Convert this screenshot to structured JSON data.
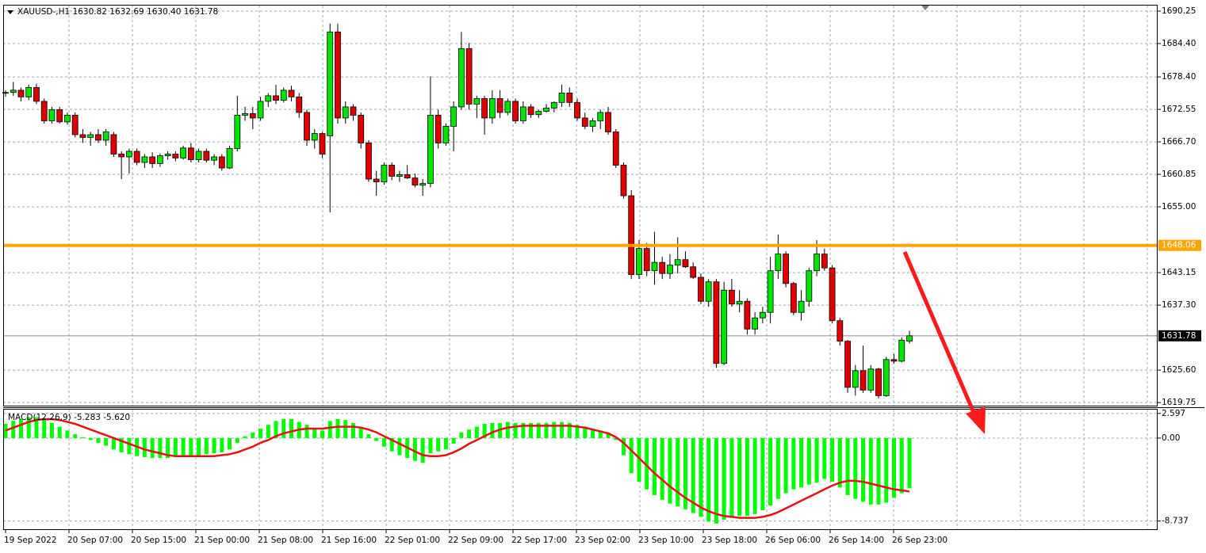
{
  "chart_data": [
    {
      "type": "candlestick",
      "title": "XAUUSD-,H1 1630.82 1632.69 1630.40 1631.78",
      "bull_color": "#00e600",
      "bear_color": "#e00000",
      "ylim": [
        1619.2,
        1691.25
      ],
      "yticks": [
        1690.25,
        {
          "value": 1684.4,
          "label": "1684.40"
        },
        {
          "value": 1678.4,
          "label": "1678.40"
        },
        1672.55,
        {
          "value": 1666.7,
          "label": "1666.70"
        },
        1660.85,
        {
          "value": 1655,
          "label": "1655.00"
        },
        1643.15,
        {
          "value": 1637.3,
          "label": "1637.30"
        },
        {
          "value": 1625.6,
          "label": "1625.60"
        },
        1619.75
      ],
      "grid": true,
      "x_labels": [
        "19 Sep 2022",
        "20 Sep 07:00",
        "20 Sep 15:00",
        "21 Sep 00:00",
        "21 Sep 08:00",
        "21 Sep 16:00",
        "22 Sep 01:00",
        "22 Sep 09:00",
        "22 Sep 17:00",
        "23 Sep 02:00",
        "23 Sep 10:00",
        "23 Sep 18:00",
        "26 Sep 06:00",
        "26 Sep 14:00",
        "26 Sep 23:00"
      ],
      "hlines": [
        {
          "value": 1648.06,
          "color": "#ffa500"
        }
      ],
      "ohlc": [
        [
          1675.5,
          1676.0,
          1674.8,
          1675.6
        ],
        [
          1675.6,
          1677.5,
          1675.0,
          1676.0
        ],
        [
          1676.0,
          1676.5,
          1674.0,
          1674.8
        ],
        [
          1674.8,
          1677.0,
          1674.2,
          1676.5
        ],
        [
          1676.5,
          1677.2,
          1673.5,
          1674.0
        ],
        [
          1674.0,
          1674.5,
          1670.0,
          1670.5
        ],
        [
          1670.5,
          1673.0,
          1670.0,
          1672.5
        ],
        [
          1672.5,
          1673.0,
          1670.0,
          1670.3
        ],
        [
          1670.3,
          1672.0,
          1669.8,
          1671.5
        ],
        [
          1671.5,
          1672.0,
          1667.5,
          1668.0
        ],
        [
          1668.0,
          1669.0,
          1666.5,
          1667.5
        ],
        [
          1667.5,
          1668.5,
          1666.0,
          1668.0
        ],
        [
          1668.0,
          1669.0,
          1666.5,
          1667.0
        ],
        [
          1667.0,
          1669.0,
          1666.0,
          1668.5
        ],
        [
          1668.0,
          1668.5,
          1664.0,
          1664.5
        ],
        [
          1664.5,
          1665.0,
          1660.0,
          1664.0
        ],
        [
          1664.0,
          1665.5,
          1661.0,
          1665.0
        ],
        [
          1665.0,
          1665.5,
          1662.5,
          1663.0
        ],
        [
          1663.0,
          1664.5,
          1662.0,
          1664.0
        ],
        [
          1664.0,
          1664.8,
          1662.0,
          1662.8
        ],
        [
          1662.8,
          1664.6,
          1662.2,
          1664.2
        ],
        [
          1664.2,
          1665.0,
          1663.5,
          1664.5
        ],
        [
          1664.5,
          1665.0,
          1663.2,
          1663.8
        ],
        [
          1663.8,
          1666.0,
          1663.5,
          1665.6
        ],
        [
          1665.6,
          1666.5,
          1663.0,
          1663.5
        ],
        [
          1663.5,
          1665.5,
          1663.0,
          1665.0
        ],
        [
          1665.0,
          1665.5,
          1663.0,
          1663.4
        ],
        [
          1663.4,
          1664.5,
          1662.5,
          1664.0
        ],
        [
          1664.0,
          1664.5,
          1661.5,
          1662.0
        ],
        [
          1662.0,
          1666.0,
          1661.8,
          1665.5
        ],
        [
          1665.5,
          1675.0,
          1665.0,
          1671.5
        ],
        [
          1671.5,
          1673.0,
          1670.5,
          1671.8
        ],
        [
          1671.8,
          1673.0,
          1669.0,
          1671.0
        ],
        [
          1671.0,
          1674.8,
          1670.5,
          1674.0
        ],
        [
          1674.0,
          1675.5,
          1673.0,
          1675.0
        ],
        [
          1675.0,
          1677.0,
          1673.5,
          1674.2
        ],
        [
          1674.2,
          1676.5,
          1673.8,
          1676.0
        ],
        [
          1676.0,
          1676.8,
          1674.0,
          1674.8
        ],
        [
          1674.8,
          1675.5,
          1671.0,
          1672.0
        ],
        [
          1672.0,
          1672.5,
          1666.0,
          1667.0
        ],
        [
          1667.0,
          1669.0,
          1665.5,
          1668.2
        ],
        [
          1668.2,
          1668.5,
          1663.8,
          1664.5
        ],
        [
          1667.8,
          1688.0,
          1654.0,
          1686.5
        ],
        [
          1686.5,
          1688.0,
          1670.0,
          1671.0
        ],
        [
          1671.0,
          1674.0,
          1670.0,
          1673.0
        ],
        [
          1673.0,
          1673.5,
          1670.5,
          1671.5
        ],
        [
          1671.5,
          1672.0,
          1665.5,
          1666.5
        ],
        [
          1666.5,
          1667.0,
          1659.5,
          1660.0
        ],
        [
          1660.0,
          1661.5,
          1657.0,
          1659.5
        ],
        [
          1659.5,
          1663.0,
          1659.0,
          1662.5
        ],
        [
          1662.5,
          1663.0,
          1659.8,
          1660.5
        ],
        [
          1660.5,
          1661.5,
          1659.5,
          1660.8
        ],
        [
          1660.8,
          1662.5,
          1660.0,
          1660.2
        ],
        [
          1660.2,
          1661.0,
          1658.5,
          1658.9
        ],
        [
          1658.9,
          1660.0,
          1657.0,
          1659.2
        ],
        [
          1659.2,
          1678.5,
          1658.5,
          1671.5
        ],
        [
          1671.5,
          1672.5,
          1665.5,
          1666.5
        ],
        [
          1666.5,
          1670.0,
          1666.0,
          1669.5
        ],
        [
          1669.5,
          1674.0,
          1665.0,
          1673.0
        ],
        [
          1673.0,
          1686.5,
          1672.5,
          1683.5
        ],
        [
          1683.5,
          1684.5,
          1672.5,
          1673.5
        ],
        [
          1673.5,
          1675.0,
          1671.0,
          1674.5
        ],
        [
          1674.5,
          1675.0,
          1668.0,
          1671.0
        ],
        [
          1671.0,
          1676.0,
          1670.0,
          1674.5
        ],
        [
          1674.5,
          1676.0,
          1671.0,
          1672.0
        ],
        [
          1672.0,
          1674.5,
          1671.5,
          1674.0
        ],
        [
          1674.0,
          1674.5,
          1670.0,
          1670.5
        ],
        [
          1670.5,
          1674.0,
          1670.0,
          1673.0
        ],
        [
          1673.0,
          1673.5,
          1671.0,
          1671.6
        ],
        [
          1671.6,
          1672.5,
          1671.0,
          1672.2
        ],
        [
          1672.2,
          1673.5,
          1672.0,
          1672.8
        ],
        [
          1672.8,
          1674.0,
          1672.0,
          1673.8
        ],
        [
          1673.8,
          1677.0,
          1673.0,
          1675.5
        ],
        [
          1675.5,
          1676.5,
          1673.0,
          1673.8
        ],
        [
          1673.8,
          1674.5,
          1670.5,
          1671.0
        ],
        [
          1671.0,
          1672.0,
          1669.0,
          1669.5
        ],
        [
          1669.5,
          1671.0,
          1668.5,
          1670.5
        ],
        [
          1670.5,
          1672.5,
          1669.0,
          1672.0
        ],
        [
          1672.0,
          1673.0,
          1668.0,
          1668.5
        ],
        [
          1668.5,
          1669.0,
          1662.0,
          1662.5
        ],
        [
          1662.5,
          1663.0,
          1656.5,
          1657.0
        ],
        [
          1657.0,
          1658.0,
          1642.0,
          1642.8
        ],
        [
          1642.8,
          1649.0,
          1642.0,
          1647.5
        ],
        [
          1647.5,
          1648.5,
          1642.5,
          1643.5
        ],
        [
          1643.5,
          1650.5,
          1641.0,
          1645.0
        ],
        [
          1645.0,
          1646.0,
          1642.0,
          1643.0
        ],
        [
          1643.0,
          1646.5,
          1642.0,
          1644.5
        ],
        [
          1644.5,
          1649.5,
          1643.0,
          1645.5
        ],
        [
          1645.5,
          1647.0,
          1644.0,
          1644.2
        ],
        [
          1644.2,
          1645.0,
          1642.0,
          1642.3
        ],
        [
          1642.3,
          1643.0,
          1637.5,
          1638.0
        ],
        [
          1638.0,
          1642.0,
          1637.0,
          1641.5
        ],
        [
          1641.5,
          1642.0,
          1626.0,
          1626.8
        ],
        [
          1626.8,
          1641.5,
          1626.5,
          1640.0
        ],
        [
          1640.0,
          1642.0,
          1637.0,
          1637.5
        ],
        [
          1637.5,
          1640.0,
          1636.0,
          1638.0
        ],
        [
          1638.0,
          1638.5,
          1632.0,
          1633.0
        ],
        [
          1633.0,
          1636.0,
          1632.0,
          1635.0
        ],
        [
          1635.0,
          1637.0,
          1634.0,
          1636.0
        ],
        [
          1636.0,
          1646.0,
          1634.0,
          1643.5
        ],
        [
          1643.5,
          1650.0,
          1642.0,
          1646.5
        ],
        [
          1646.5,
          1647.0,
          1640.5,
          1641.2
        ],
        [
          1641.2,
          1641.5,
          1635.5,
          1636.0
        ],
        [
          1636.0,
          1640.0,
          1634.5,
          1638.0
        ],
        [
          1638.0,
          1644.0,
          1637.0,
          1643.5
        ],
        [
          1643.5,
          1649.0,
          1642.5,
          1646.5
        ],
        [
          1646.5,
          1647.5,
          1643.5,
          1644.0
        ],
        [
          1644.0,
          1644.5,
          1634.0,
          1634.5
        ],
        [
          1634.5,
          1635.0,
          1630.0,
          1630.8
        ],
        [
          1630.8,
          1631.0,
          1621.5,
          1622.5
        ],
        [
          1622.5,
          1626.5,
          1621.0,
          1625.5
        ],
        [
          1625.5,
          1630.0,
          1621.5,
          1622.0
        ],
        [
          1622.0,
          1626.5,
          1621.5,
          1625.8
        ],
        [
          1625.8,
          1626.0,
          1620.5,
          1621.0
        ],
        [
          1621.0,
          1628.0,
          1620.8,
          1627.5
        ],
        [
          1627.5,
          1628.5,
          1626.8,
          1627.2
        ],
        [
          1627.2,
          1631.5,
          1627.0,
          1631.0
        ],
        [
          1630.82,
          1632.69,
          1630.4,
          1631.78
        ]
      ]
    },
    {
      "type": "macd",
      "title": "MACD(12,26,9) -5.283 -5.620",
      "ylim": [
        -9.6,
        3.0
      ],
      "yticks": [
        2.597,
        {
          "value": 0,
          "label": "0.00"
        },
        -8.737
      ],
      "histogram": {
        "color": "#00ff00",
        "values": [
          1.5,
          1.8,
          2.0,
          2.2,
          2.2,
          2.0,
          1.6,
          1.2,
          0.8,
          0.4,
          0.1,
          -0.2,
          -0.5,
          -0.8,
          -1.2,
          -1.5,
          -1.7,
          -1.9,
          -2.0,
          -2.1,
          -2.1,
          -2.1,
          -2.0,
          -1.9,
          -1.8,
          -1.8,
          -1.7,
          -1.6,
          -1.5,
          -1.2,
          -0.5,
          0.2,
          0.6,
          1.0,
          1.4,
          1.8,
          2.0,
          2.0,
          1.7,
          1.4,
          1.0,
          0.8,
          1.8,
          2.0,
          1.9,
          1.6,
          1.1,
          0.4,
          -0.3,
          -0.9,
          -1.4,
          -1.8,
          -2.1,
          -2.4,
          -2.6,
          -1.6,
          -1.4,
          -1.2,
          -0.6,
          0.6,
          0.9,
          1.2,
          1.5,
          1.6,
          1.6,
          1.7,
          1.6,
          1.6,
          1.6,
          1.6,
          1.6,
          1.7,
          1.7,
          1.6,
          1.4,
          1.2,
          1.0,
          0.8,
          0.6,
          -0.2,
          -1.8,
          -3.7,
          -4.6,
          -5.4,
          -6.0,
          -6.5,
          -6.9,
          -7.2,
          -7.5,
          -7.9,
          -8.3,
          -8.8,
          -9.0,
          -8.6,
          -8.4,
          -8.2,
          -8.2,
          -8.0,
          -7.6,
          -7.1,
          -6.4,
          -5.8,
          -5.4,
          -5.2,
          -4.9,
          -4.7,
          -4.3,
          -4.6,
          -5.2,
          -6.0,
          -6.4,
          -6.7,
          -7.0,
          -7.0,
          -6.8,
          -6.3,
          -5.8,
          -5.283
        ]
      },
      "signal": {
        "color": "#e81010",
        "values": [
          0.8,
          1.1,
          1.4,
          1.7,
          1.9,
          2.0,
          2.0,
          1.9,
          1.7,
          1.5,
          1.2,
          0.9,
          0.6,
          0.3,
          0.0,
          -0.3,
          -0.6,
          -0.9,
          -1.2,
          -1.4,
          -1.6,
          -1.8,
          -1.9,
          -1.9,
          -1.9,
          -1.9,
          -1.9,
          -1.9,
          -1.8,
          -1.7,
          -1.5,
          -1.2,
          -0.9,
          -0.5,
          -0.2,
          0.2,
          0.5,
          0.7,
          0.9,
          1.0,
          1.0,
          1.0,
          1.1,
          1.2,
          1.2,
          1.2,
          1.1,
          0.9,
          0.6,
          0.2,
          -0.2,
          -0.6,
          -1.0,
          -1.4,
          -1.8,
          -1.9,
          -1.9,
          -1.8,
          -1.5,
          -1.1,
          -0.6,
          -0.2,
          0.2,
          0.6,
          0.9,
          1.1,
          1.2,
          1.3,
          1.3,
          1.3,
          1.3,
          1.3,
          1.3,
          1.3,
          1.2,
          1.1,
          0.9,
          0.7,
          0.5,
          0.1,
          -0.5,
          -1.3,
          -2.1,
          -2.9,
          -3.7,
          -4.4,
          -5.1,
          -5.7,
          -6.3,
          -6.8,
          -7.3,
          -7.7,
          -8.0,
          -8.2,
          -8.3,
          -8.4,
          -8.4,
          -8.4,
          -8.3,
          -8.1,
          -7.8,
          -7.4,
          -7.0,
          -6.6,
          -6.2,
          -5.8,
          -5.4,
          -5.0,
          -4.7,
          -4.5,
          -4.5,
          -4.6,
          -4.8,
          -5.0,
          -5.2,
          -5.4,
          -5.5,
          -5.62
        ]
      }
    }
  ]
}
